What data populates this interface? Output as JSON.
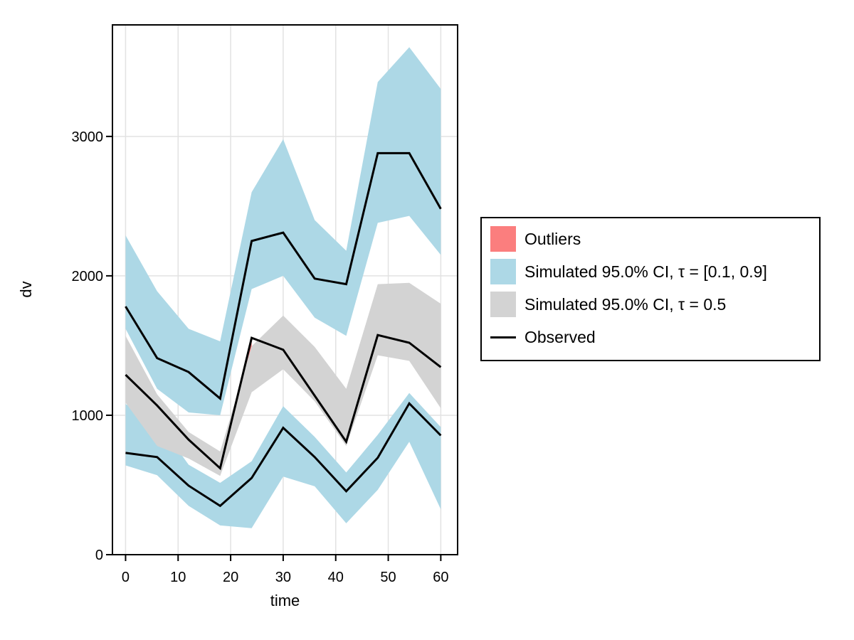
{
  "page": {
    "background": "#ffffff"
  },
  "chart_data": {
    "type": "line",
    "variant": "vpc-quantile-bands",
    "title": "",
    "xlabel": "time",
    "ylabel": "dv",
    "xlim": [
      -2.5,
      63.2
    ],
    "ylim": [
      0,
      3800
    ],
    "xticks": [
      0,
      10,
      20,
      30,
      40,
      50,
      60
    ],
    "yticks": [
      0,
      1000,
      2000,
      3000
    ],
    "grid": true,
    "grid_color": "#E2E2E2",
    "axis_color": "#000000",
    "x": [
      0,
      6,
      12,
      18,
      24,
      30,
      36,
      42,
      48,
      54,
      60
    ],
    "bands": [
      {
        "key": "ci-tau-0.9-upper-blue",
        "label": "Simulated 95.0% CI, τ = [0.1, 0.9]",
        "color": "#ADD8E6",
        "hi": [
          2290,
          1890,
          1620,
          1530,
          2600,
          2980,
          2400,
          2180,
          3390,
          3640,
          3340
        ],
        "lo": [
          1620,
          1190,
          1020,
          1000,
          1905,
          2000,
          1700,
          1570,
          2380,
          2430,
          2150
        ]
      },
      {
        "key": "ci-tau-0.1-lower-blue",
        "label": "Simulated 95.0% CI, τ = [0.1, 0.9]",
        "color": "#ADD8E6",
        "hi": [
          1080,
          960,
          645,
          515,
          670,
          1065,
          845,
          590,
          860,
          1160,
          915
        ],
        "lo": [
          640,
          570,
          350,
          210,
          190,
          560,
          490,
          225,
          465,
          810,
          325
        ]
      },
      {
        "key": "ci-tau-0.5-gray",
        "label": "Simulated 95.0% CI, τ = 0.5",
        "color": "#D3D3D3",
        "hi": [
          1570,
          1150,
          880,
          740,
          1495,
          1715,
          1490,
          1190,
          1940,
          1950,
          1800
        ],
        "lo": [
          1090,
          780,
          690,
          565,
          1165,
          1330,
          1100,
          780,
          1430,
          1390,
          1050
        ]
      }
    ],
    "series": [
      {
        "key": "observed-upper-quantile",
        "color": "#000000",
        "values": [
          1780,
          1410,
          1310,
          1120,
          2250,
          2310,
          1980,
          1940,
          2880,
          2880,
          2480
        ]
      },
      {
        "key": "observed-median",
        "color": "#000000",
        "values": [
          1290,
          1070,
          825,
          620,
          1555,
          1470,
          1140,
          810,
          1575,
          1520,
          1345
        ]
      },
      {
        "key": "observed-lower-quantile",
        "color": "#000000",
        "values": [
          730,
          700,
          495,
          350,
          550,
          910,
          700,
          455,
          695,
          1085,
          855
        ]
      }
    ],
    "outliers": {
      "label": "Outliers",
      "color": "#FB7E7E",
      "polygons": [
        [
          [
            22,
            1243
          ],
          [
            24,
            1555
          ],
          [
            24,
            1495
          ]
        ]
      ]
    },
    "legend": {
      "position": "right",
      "items": [
        {
          "key": "outliers",
          "swatch": "square",
          "color": "#FB7E7E",
          "label": "Outliers"
        },
        {
          "key": "ci-80",
          "swatch": "square",
          "color": "#ADD8E6",
          "label": "Simulated 95.0% CI, τ = [0.1, 0.9]"
        },
        {
          "key": "ci-median",
          "swatch": "square",
          "color": "#D3D3D3",
          "label": "Simulated 95.0% CI, τ = 0.5"
        },
        {
          "key": "observed",
          "swatch": "line",
          "color": "#000000",
          "label": "Observed"
        }
      ]
    }
  }
}
